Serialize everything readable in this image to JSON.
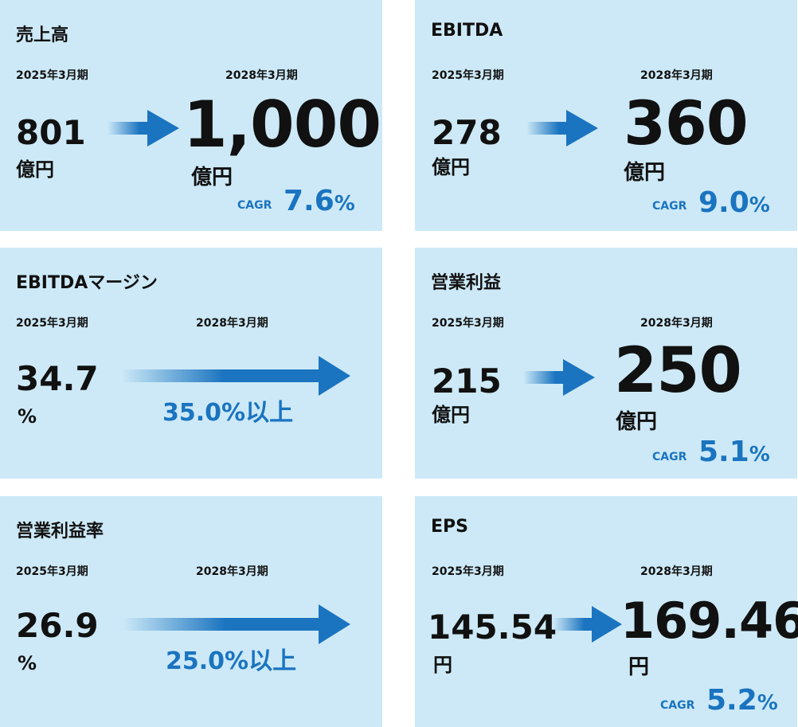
{
  "cards": [
    {
      "title": "売上高",
      "from_period": "2025年3月期",
      "to_period": "2028年3月期",
      "from_value": "801",
      "from_unit": "億円",
      "to_value": "1,000",
      "to_unit": "億円",
      "cagr_label": "CAGR",
      "cagr_value": "7.6",
      "cagr_unit": "%"
    },
    {
      "title": "EBITDA",
      "from_period": "2025年3月期",
      "to_period": "2028年3月期",
      "from_value": "278",
      "from_unit": "億円",
      "to_value": "360",
      "to_unit": "億円",
      "cagr_label": "CAGR",
      "cagr_value": "9.0",
      "cagr_unit": "%"
    },
    {
      "title": "EBITDAマージン",
      "from_period": "2025年3月期",
      "to_period": "2028年3月期",
      "from_value": "34.7",
      "from_unit": "%",
      "target": "35.0%以上"
    },
    {
      "title": "営業利益",
      "from_period": "2025年3月期",
      "to_period": "2028年3月期",
      "from_value": "215",
      "from_unit": "億円",
      "to_value": "250",
      "to_unit": "億円",
      "cagr_label": "CAGR",
      "cagr_value": "5.1",
      "cagr_unit": "%"
    },
    {
      "title": "営業利益率",
      "from_period": "2025年3月期",
      "to_period": "2028年3月期",
      "from_value": "26.9",
      "from_unit": "%",
      "target": "25.0%以上"
    },
    {
      "title": "EPS",
      "from_period": "2025年3月期",
      "to_period": "2028年3月期",
      "from_value": "145.54",
      "from_unit": "円",
      "to_value": "169.46",
      "to_unit": "円",
      "cagr_label": "CAGR",
      "cagr_value": "5.2",
      "cagr_unit": "%"
    }
  ],
  "colors": {
    "background": "#cde9f7",
    "accent": "#1a74c0",
    "text": "#111111"
  },
  "icons": {
    "arrow": "right-arrow-icon"
  }
}
